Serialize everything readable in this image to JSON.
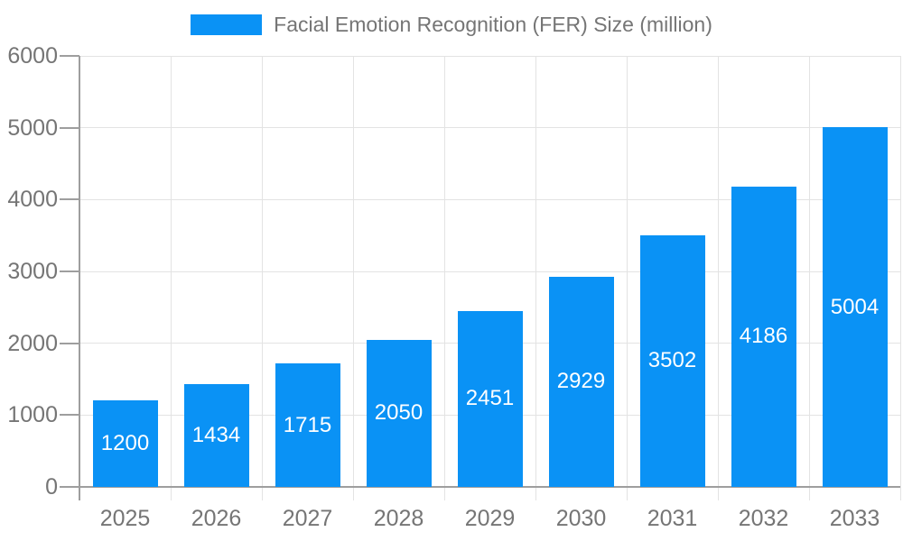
{
  "legend": {
    "label": "Facial Emotion Recognition (FER) Size (million)"
  },
  "chart_data": {
    "type": "bar",
    "title": "Facial Emotion Recognition (FER) Size (million)",
    "categories": [
      "2025",
      "2026",
      "2027",
      "2028",
      "2029",
      "2030",
      "2031",
      "2032",
      "2033"
    ],
    "values": [
      1200,
      1434,
      1715,
      2050,
      2451,
      2929,
      3502,
      4186,
      5004
    ],
    "xlabel": "",
    "ylabel": "",
    "ylim": [
      0,
      6000
    ],
    "yticks": [
      0,
      1000,
      2000,
      3000,
      4000,
      5000,
      6000
    ],
    "grid": true,
    "legend_position": "top-center",
    "value_labels": "inside-center-white",
    "colors": {
      "bar": "#0a92f5",
      "gridline": "#e3e3e3",
      "axis": "#9e9e9e",
      "tick_text": "#757575",
      "legend_text": "#757575",
      "value_text": "#ffffff",
      "background": "#ffffff"
    }
  }
}
